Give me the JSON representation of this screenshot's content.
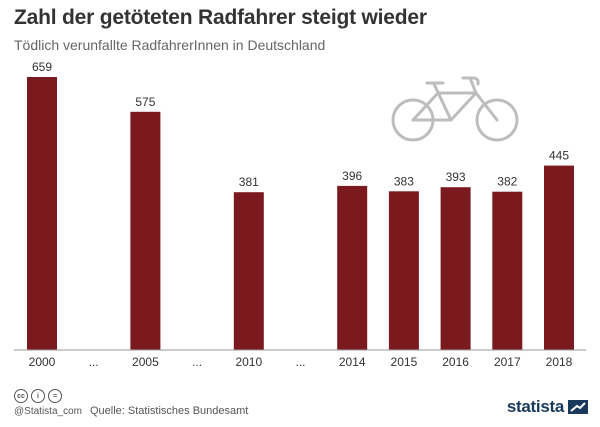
{
  "header": {
    "title": "Zahl der getöteten Radfahrer steigt wieder",
    "subtitle": "Tödlich verunfallte RadfahrerInnen in Deutschland"
  },
  "footer": {
    "handle": "@Statista_com",
    "source": "Quelle: Statistisches Bundesamt",
    "brand": "statista",
    "cc_icons": [
      "cc",
      "i",
      "="
    ]
  },
  "colors": {
    "bar": "#7a1a1f",
    "bicycle": "#bdbdbd"
  },
  "chart_data": {
    "type": "bar",
    "title": "Zahl der getöteten Radfahrer steigt wieder",
    "subtitle": "Tödlich verunfallte RadfahrerInnen in Deutschland",
    "xlabel": "",
    "ylabel": "",
    "ylim": [
      0,
      700
    ],
    "grid": false,
    "categories": [
      "2000",
      "...",
      "2005",
      "...",
      "2010",
      "...",
      "2014",
      "2015",
      "2016",
      "2017",
      "2018"
    ],
    "values": [
      659,
      null,
      575,
      null,
      381,
      null,
      396,
      383,
      393,
      382,
      445
    ]
  }
}
